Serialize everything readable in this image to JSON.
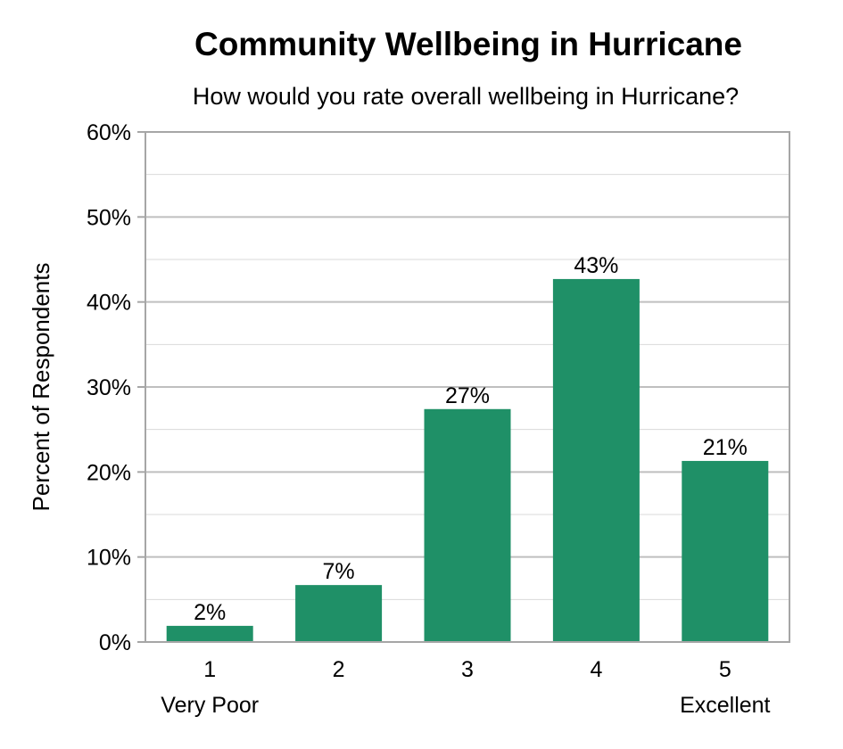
{
  "chart_data": {
    "type": "bar",
    "title": "Community Wellbeing in Hurricane",
    "subtitle": "How would you rate overall wellbeing in Hurricane?",
    "ylabel": "Percent of Respondents",
    "xlabel": "",
    "categories": [
      "1",
      "2",
      "3",
      "4",
      "5"
    ],
    "category_sublabels": [
      "Very Poor",
      "",
      "",
      "",
      "Excellent"
    ],
    "values": [
      1.9,
      6.7,
      27.4,
      42.7,
      21.3
    ],
    "data_labels": [
      "2%",
      "7%",
      "27%",
      "43%",
      "21%"
    ],
    "ylim": [
      0,
      60
    ],
    "yticks": [
      0,
      10,
      20,
      30,
      40,
      50,
      60
    ],
    "ytick_labels": [
      "0%",
      "10%",
      "20%",
      "30%",
      "40%",
      "50%",
      "60%"
    ],
    "grid": true,
    "bar_color": "#1f9067",
    "grid_color": "#bfbfbf"
  }
}
